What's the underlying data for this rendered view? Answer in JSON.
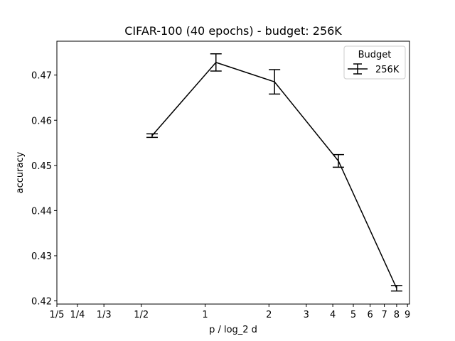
{
  "chart_data": {
    "type": "line",
    "title": "CIFAR-100 (40 epochs) - budget: 256K",
    "xlabel": "p / log_2 d",
    "ylabel": "accuracy",
    "x_scale": "log2",
    "xlim": [
      0.2,
      9.2
    ],
    "ylim": [
      0.4193,
      0.4775
    ],
    "x_ticks": [
      {
        "value": 0.2,
        "label": "1/5"
      },
      {
        "value": 0.25,
        "label": "1/4"
      },
      {
        "value": 0.3333,
        "label": "1/3"
      },
      {
        "value": 0.5,
        "label": "1/2"
      },
      {
        "value": 1,
        "label": "1"
      },
      {
        "value": 2,
        "label": "2"
      },
      {
        "value": 3,
        "label": "3"
      },
      {
        "value": 4,
        "label": "4"
      },
      {
        "value": 5,
        "label": "5"
      },
      {
        "value": 6,
        "label": "6"
      },
      {
        "value": 7,
        "label": "7"
      },
      {
        "value": 8,
        "label": "8"
      },
      {
        "value": 9,
        "label": "9"
      }
    ],
    "y_ticks": [
      0.42,
      0.43,
      0.44,
      0.45,
      0.46,
      0.47
    ],
    "y_tick_labels": [
      "0.42",
      "0.43",
      "0.44",
      "0.45",
      "0.46",
      "0.47"
    ],
    "grid": false,
    "legend": {
      "title": "Budget",
      "placement": "top-right"
    },
    "series": [
      {
        "name": "256K",
        "color": "#000000",
        "x": [
          0.5625,
          1.125,
          2.125,
          4.25,
          8.0
        ],
        "y": [
          0.4566,
          0.4728,
          0.4685,
          0.451,
          0.4228
        ],
        "yerr": [
          0.0004,
          0.0019,
          0.0027,
          0.0014,
          0.0006
        ]
      }
    ]
  }
}
